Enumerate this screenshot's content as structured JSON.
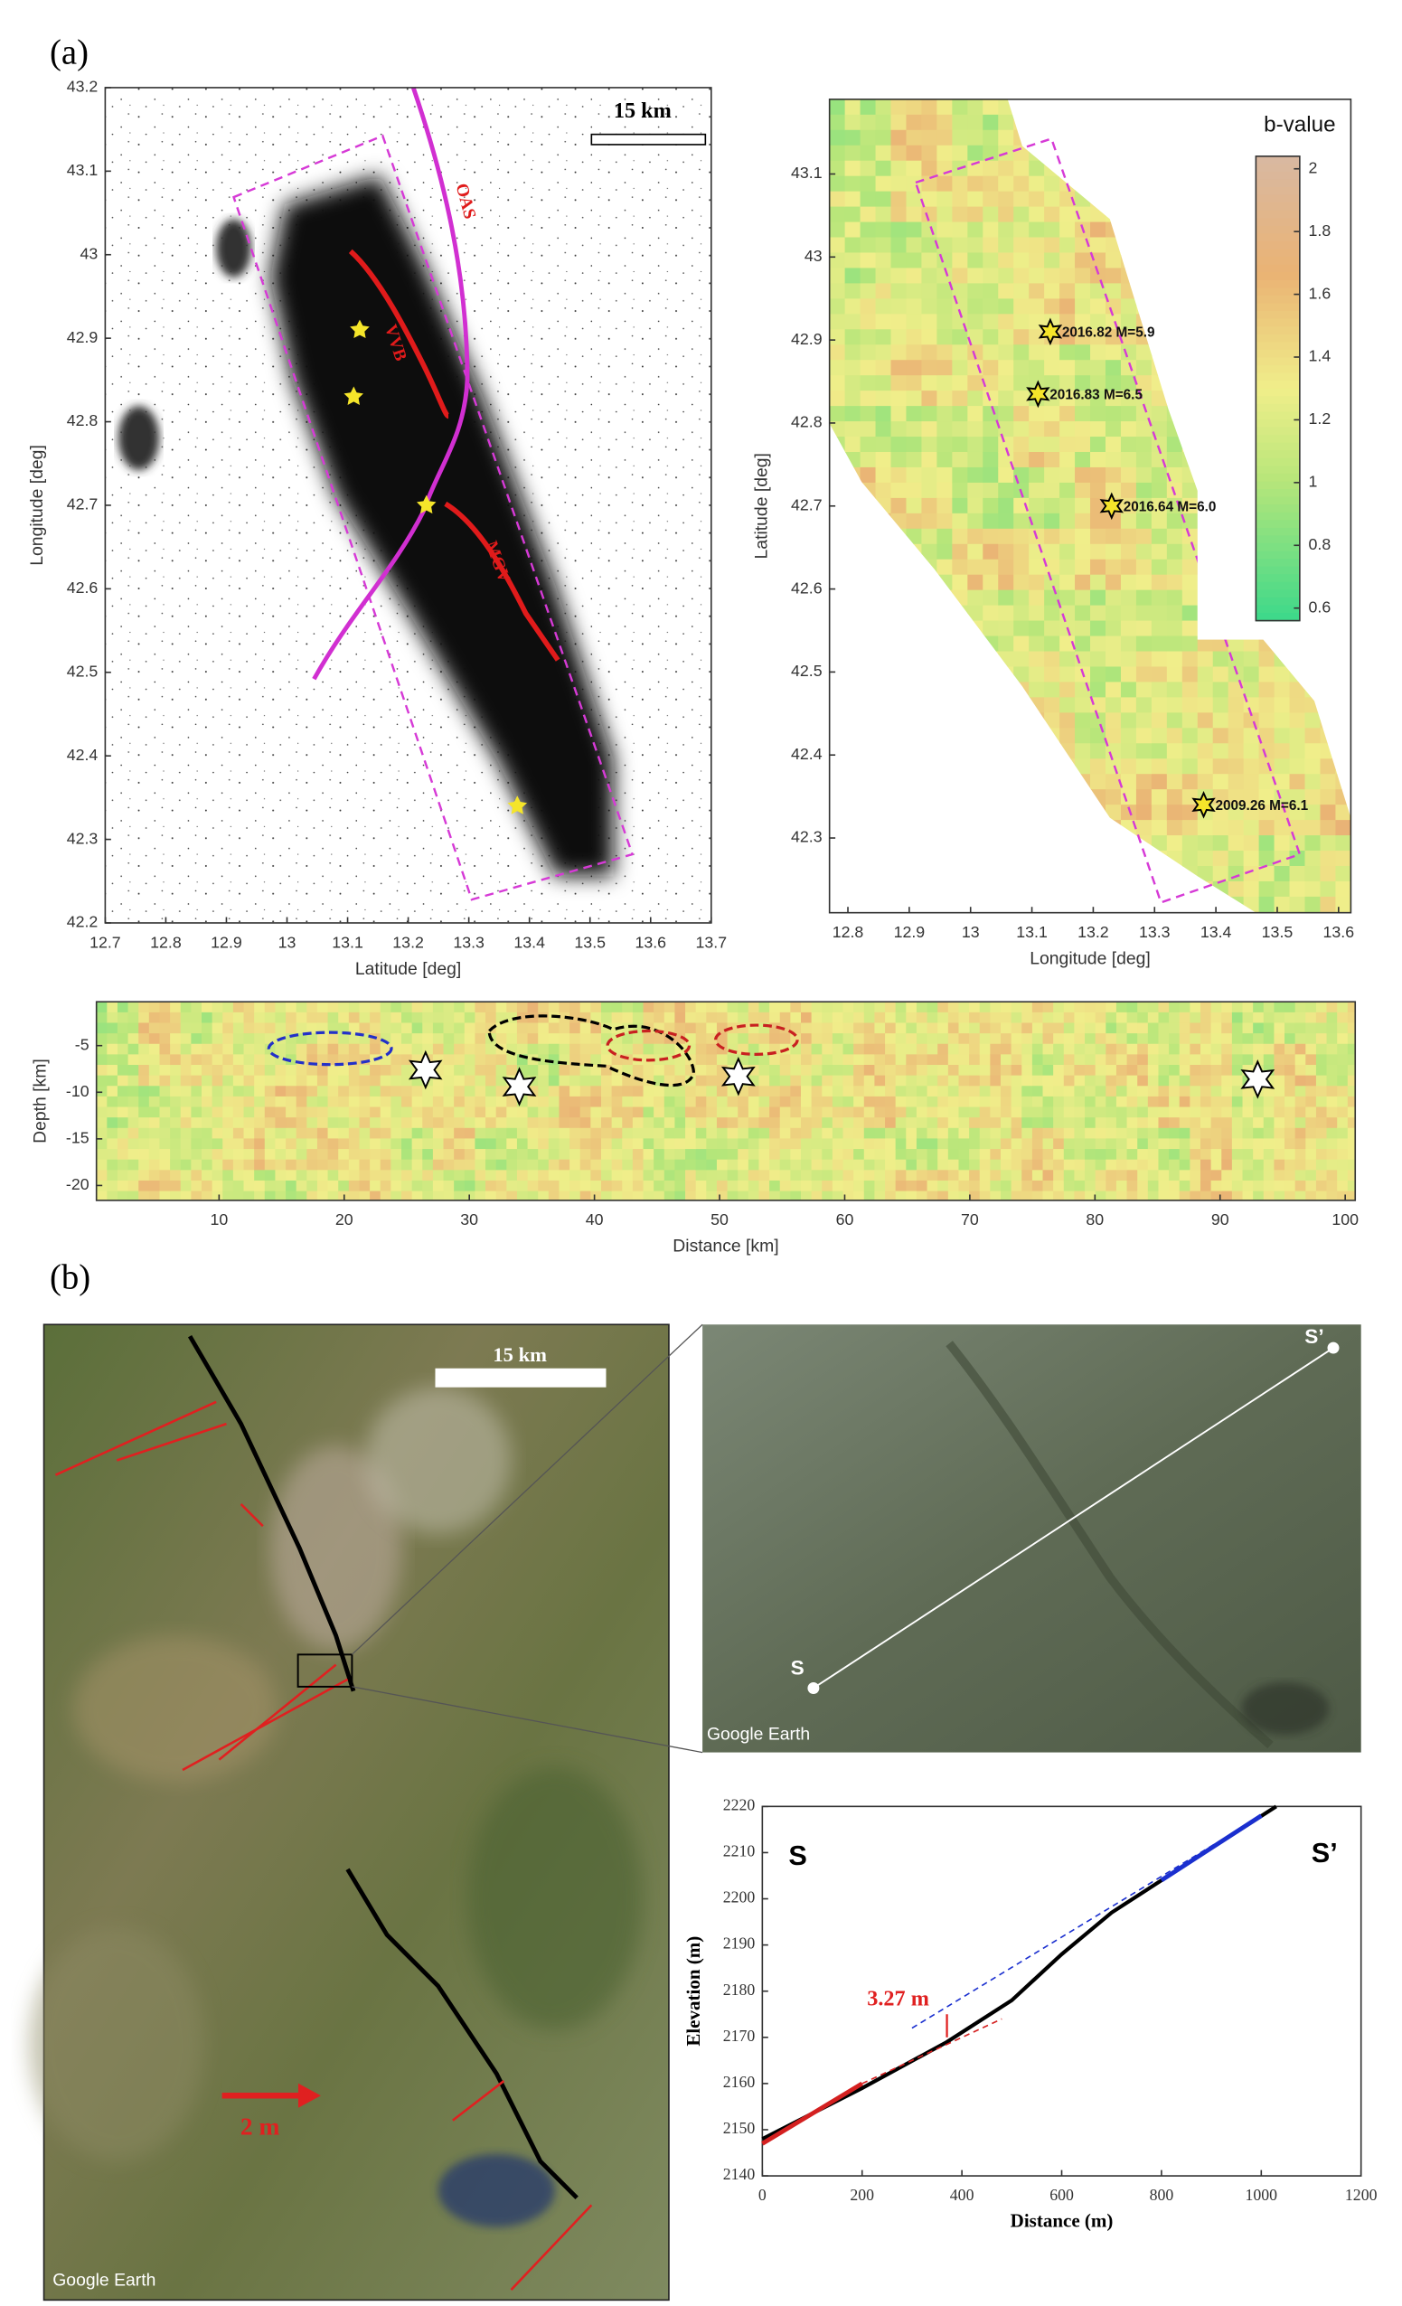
{
  "panel_labels": [
    "(a)",
    "(b)"
  ],
  "chart_data": [
    {
      "type": "scatter",
      "xlabel": "Latitude [deg]",
      "ylabel": "Longitude [deg]",
      "xlim": [
        12.7,
        13.7
      ],
      "xticks": [
        12.7,
        12.8,
        12.9,
        13.0,
        13.1,
        13.2,
        13.3,
        13.4,
        13.5,
        13.6,
        13.7
      ],
      "ylim": [
        42.2,
        43.2
      ],
      "yticks": [
        42.2,
        42.3,
        42.4,
        42.5,
        42.6,
        42.7,
        42.8,
        42.9,
        43.0,
        43.1,
        43.2
      ],
      "x": [
        13.12,
        13.11,
        13.23,
        13.38
      ],
      "values": [
        42.91,
        42.83,
        42.7,
        42.34
      ],
      "color": "#f5e52a",
      "annotations": [
        "15 km",
        "OAS",
        "VVB",
        "MGV"
      ]
    },
    {
      "type": "scatter",
      "xlabel": "Longitude [deg]",
      "ylabel": "Latitude [deg]",
      "xlim": [
        12.77,
        13.62
      ],
      "xticks": [
        12.8,
        12.9,
        13.0,
        13.1,
        13.2,
        13.3,
        13.4,
        13.5,
        13.6
      ],
      "ylim": [
        42.21,
        43.19
      ],
      "yticks": [
        42.3,
        42.4,
        42.5,
        42.6,
        42.7,
        42.8,
        42.9,
        43.0,
        43.1
      ],
      "x": [
        13.13,
        13.11,
        13.23,
        13.38
      ],
      "values": [
        42.91,
        42.835,
        42.7,
        42.34
      ],
      "labels": [
        "2016.82 M=5.9",
        "2016.83 M=6.5",
        "2016.64 M=6.0",
        "2009.26 M=6.1"
      ],
      "color": "#f5e52a",
      "colorbar": {
        "title": "b-value",
        "lim": [
          0.56,
          2.04
        ],
        "ticks": [
          0.6,
          0.8,
          1,
          1.2,
          1.4,
          1.6,
          1.8,
          2
        ]
      }
    },
    {
      "type": "scatter",
      "xlabel": "Distance [km]",
      "ylabel": "Depth [km]",
      "xlim": [
        0.2,
        100.8
      ],
      "xticks": [
        10,
        20,
        30,
        40,
        50,
        60,
        70,
        80,
        90,
        100
      ],
      "ylim": [
        -21.6,
        -0.3
      ],
      "yticks": [
        -20,
        -15,
        -10,
        -5
      ],
      "x": [
        26.5,
        34,
        51.5,
        93
      ],
      "values": [
        -7.6,
        -9.4,
        -8.3,
        -8.6
      ],
      "color": "#ffffff"
    },
    {
      "type": "line",
      "xlabel": "Distance (m)",
      "ylabel": "Elevation (m)",
      "xlim": [
        0,
        1200
      ],
      "xticks": [
        0,
        200,
        400,
        600,
        800,
        1000,
        1200
      ],
      "ylim": [
        2140,
        2220
      ],
      "yticks": [
        2140,
        2150,
        2160,
        2170,
        2180,
        2190,
        2200,
        2210,
        2220
      ],
      "series": [
        {
          "color": "#000000",
          "dash": false,
          "x": [
            0,
            200,
            370,
            500,
            600,
            700,
            800,
            900,
            1030
          ],
          "values": [
            2148,
            2159,
            2169,
            2178,
            2188,
            2197,
            2204,
            2211,
            2220
          ]
        },
        {
          "color": "#d42020",
          "dash": false,
          "x": [
            0,
            200
          ],
          "values": [
            2147,
            2160
          ]
        },
        {
          "color": "#1a2fcf",
          "dash": false,
          "x": [
            800,
            1000
          ],
          "values": [
            2204,
            2218
          ]
        },
        {
          "color": "#d42020",
          "dash": true,
          "x": [
            200,
            480
          ],
          "values": [
            2160,
            2174
          ]
        },
        {
          "color": "#1a2fcf",
          "dash": true,
          "x": [
            300,
            1000
          ],
          "values": [
            2172,
            2218
          ]
        }
      ],
      "annotations": [
        "S",
        "S’",
        "3.27 m"
      ]
    }
  ],
  "map": {
    "scale_bar": "15 km",
    "arrow_label": "2 m",
    "credit": "Google Earth"
  },
  "satellite": {
    "start": "S",
    "end": "S’",
    "credit": "Google Earth"
  }
}
